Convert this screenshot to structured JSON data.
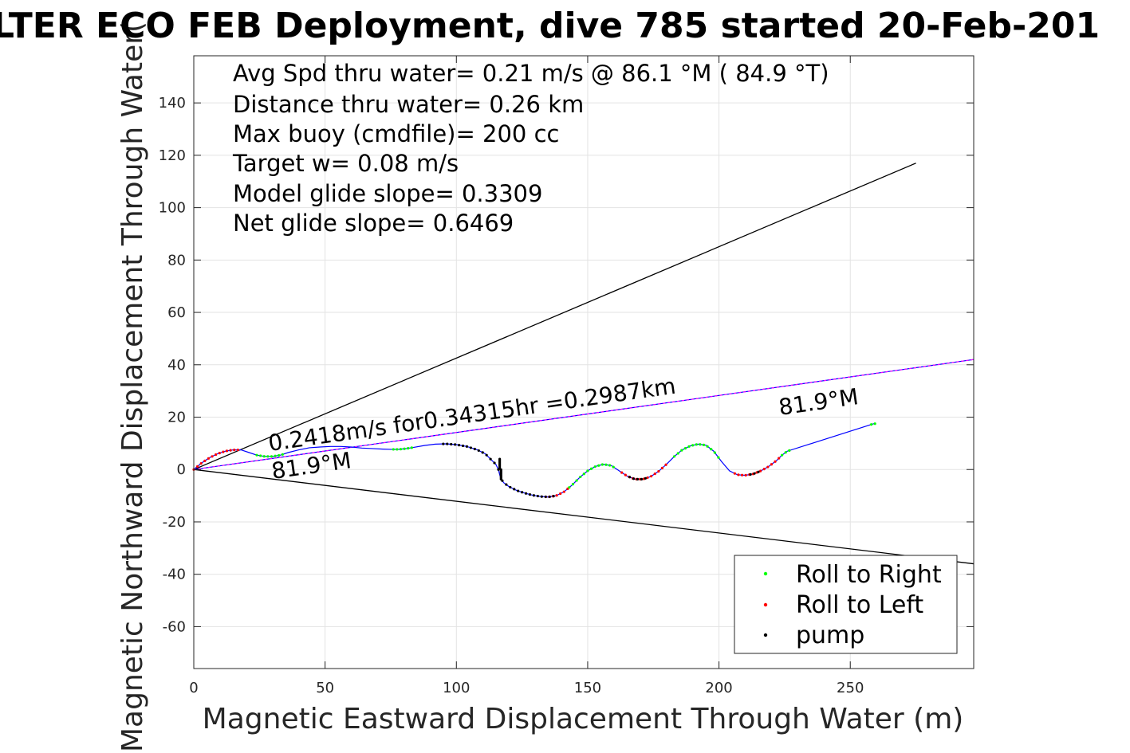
{
  "chart_data": {
    "type": "scatter",
    "title": "LTER ECO FEB Deployment, dive 785 started 20-Feb-201",
    "xlabel": "Magnetic Eastward Displacement Through Water (m)",
    "ylabel": "Magnetic Northward Displacement Through Water(",
    "xlim": [
      0,
      297
    ],
    "ylim": [
      -76,
      158
    ],
    "xticks": [
      0,
      50,
      100,
      150,
      200,
      250
    ],
    "yticks": [
      -60,
      -40,
      -20,
      0,
      20,
      40,
      60,
      80,
      100,
      120,
      140
    ],
    "grid": true,
    "legend_position": "bottom-right",
    "info_lines": [
      "Avg Spd thru water=  0.21 m/s @  86.1 °M ( 84.9 °T)",
      "Distance thru water=  0.26 km",
      "Max buoy (cmdfile)= 200 cc",
      "Target w= 0.08 m/s",
      "Model glide slope= 0.3309",
      "Net glide slope= 0.6469"
    ],
    "annotations": {
      "current_label": "0.2418m/s for0.34315hr =0.2987km",
      "heading_left": "81.9°M",
      "heading_right": "81.9°M"
    },
    "reference_lines": [
      {
        "name": "upper-bound",
        "x": [
          0,
          275
        ],
        "y": [
          0,
          117
        ],
        "color": "#000000"
      },
      {
        "name": "lower-bound",
        "x": [
          0,
          297
        ],
        "y": [
          0,
          -36
        ],
        "color": "#000000"
      },
      {
        "name": "current-vector",
        "x": [
          0,
          297
        ],
        "y": [
          0,
          42
        ],
        "color": "#ff00ff"
      }
    ],
    "track": {
      "color": "#0000ff",
      "x": [
        0,
        3,
        6,
        9,
        12,
        15,
        18,
        21,
        24,
        27,
        30,
        33,
        36,
        40,
        44,
        48,
        52,
        56,
        60,
        64,
        68,
        72,
        75,
        78,
        81,
        84,
        88,
        92,
        96,
        100,
        104,
        108,
        111,
        113,
        115,
        116,
        116.5,
        117,
        118,
        120,
        123,
        126,
        129,
        132,
        135,
        138,
        141,
        144,
        147,
        150,
        153,
        156,
        159,
        162,
        165,
        168,
        171,
        174,
        177,
        180,
        183,
        186,
        189,
        192,
        195,
        198,
        201,
        204,
        207,
        210,
        213,
        216,
        219,
        222,
        224,
        226,
        259
      ],
      "y": [
        0,
        2.5,
        4.5,
        6,
        7,
        7.5,
        7.5,
        6.5,
        5.5,
        5,
        5,
        5.5,
        6.5,
        7.5,
        8.3,
        8.6,
        8.8,
        8.8,
        8.6,
        8.2,
        8,
        7.8,
        7.7,
        7.7,
        8,
        8.5,
        9.2,
        9.7,
        9.8,
        9.5,
        8.8,
        7.5,
        6,
        4,
        2,
        0,
        -2,
        -3.5,
        -5,
        -6.5,
        -8,
        -9,
        -9.8,
        -10.3,
        -10.5,
        -10,
        -8.5,
        -6,
        -3,
        -0.5,
        1.2,
        2,
        1.5,
        -0.5,
        -2.5,
        -3.7,
        -3.7,
        -2.7,
        -0.7,
        2,
        5,
        7.5,
        9,
        9.7,
        9.3,
        7,
        3,
        -0.5,
        -2,
        -2.2,
        -1.7,
        -0.5,
        1.2,
        3.5,
        5.5,
        7,
        17.5
      ]
    },
    "series": [
      {
        "name": "Roll to Right",
        "color": "#00ff00",
        "marker": "."
      },
      {
        "name": "Roll to Left",
        "color": "#ff0000",
        "marker": "."
      },
      {
        "name": "pump",
        "color": "#000000",
        "marker": "."
      }
    ],
    "marker_ranges": {
      "roll_left": [
        [
          0,
          18
        ],
        [
          134,
          143
        ],
        [
          163,
          180
        ],
        [
          206,
          223
        ]
      ],
      "roll_right": [
        [
          24,
          34
        ],
        [
          76,
          84
        ],
        [
          143,
          160
        ],
        [
          183,
          200
        ],
        [
          224,
          228
        ],
        [
          258,
          260
        ]
      ],
      "pump": [
        [
          95,
          137
        ],
        [
          166,
          172
        ],
        [
          212,
          216
        ]
      ]
    }
  }
}
